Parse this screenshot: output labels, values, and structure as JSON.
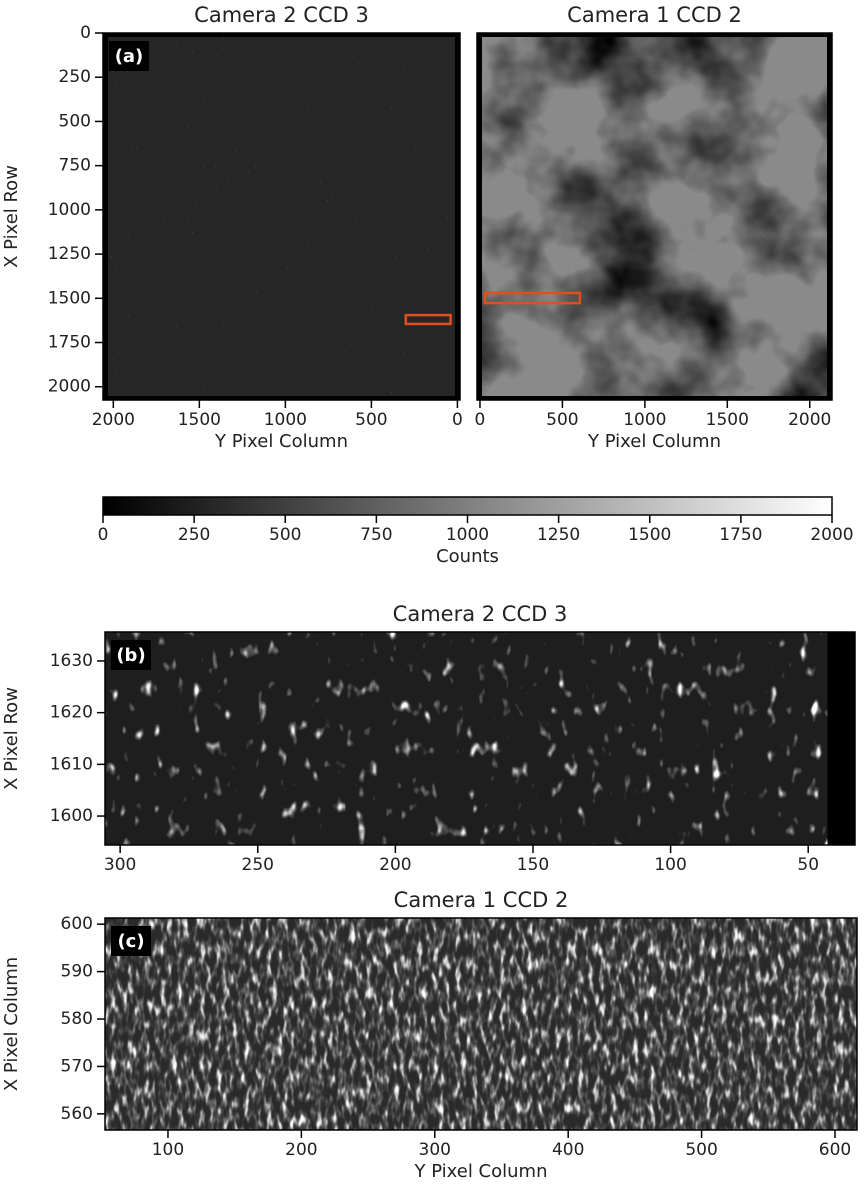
{
  "chart_data": [
    {
      "type": "image",
      "title": "Camera 2 CCD 3",
      "panel_label": "(a)",
      "xlabel": "Y Pixel Column",
      "ylabel": "X Pixel Row",
      "xlim": [
        2060,
        -15
      ],
      "ylim": [
        2075,
        0
      ],
      "xticks": [
        2000,
        1500,
        1000,
        500,
        0
      ],
      "yticks": [
        0,
        250,
        500,
        750,
        1000,
        1250,
        1500,
        1750,
        2000
      ],
      "highlight": {
        "x": [
          300,
          40
        ],
        "y": [
          1595,
          1645
        ],
        "color": "#e0501a"
      },
      "texture": "stars"
    },
    {
      "type": "image",
      "title": "Camera 1 CCD 2",
      "xlabel": "Y Pixel Column",
      "xlim": [
        -18,
        2135
      ],
      "ylim": [
        2075,
        0
      ],
      "xticks": [
        0,
        500,
        1000,
        1500,
        2000
      ],
      "highlight": {
        "x": [
          30,
          606
        ],
        "y": [
          1470,
          1527
        ],
        "color": "#e0501a"
      },
      "texture": "nebula"
    },
    {
      "type": "colorbar",
      "xlabel": "Counts",
      "xlim": [
        0,
        2000
      ],
      "xticks": [
        0,
        250,
        500,
        750,
        1000,
        1250,
        1500,
        1750,
        2000
      ]
    },
    {
      "type": "image",
      "title": "Camera 2 CCD 3",
      "panel_label": "(b)",
      "ylabel": "X Pixel Row",
      "xlim": [
        305.5,
        33
      ],
      "ylim": [
        1594.4,
        1635.6
      ],
      "image_xlim": [
        305.5,
        43
      ],
      "xticks": [
        300,
        250,
        200,
        150,
        100,
        50
      ],
      "yticks": [
        1600,
        1610,
        1620,
        1630
      ],
      "texture": "blobs"
    },
    {
      "type": "image",
      "title": "Camera 1 CCD 2",
      "panel_label": "(c)",
      "xlabel": "Y Pixel Column",
      "ylabel": "X Pixel Column",
      "xlim": [
        52.8,
        616.5
      ],
      "ylim": [
        556.6,
        601.3
      ],
      "xticks": [
        100,
        200,
        300,
        400,
        500,
        600
      ],
      "yticks": [
        560,
        570,
        580,
        590,
        600
      ],
      "texture": "dense"
    }
  ]
}
